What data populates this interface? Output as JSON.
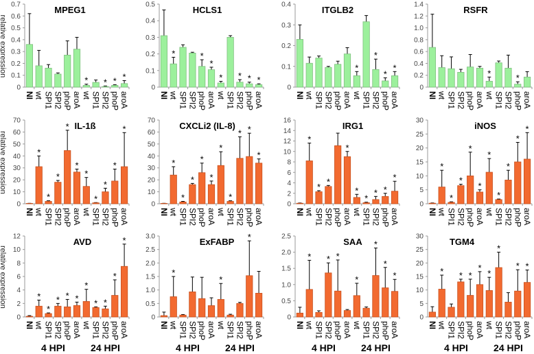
{
  "ylabel": "relative expression",
  "hpi_labels": [
    "4 HPI",
    "24 HPI"
  ],
  "colors": {
    "green": "#9cf09c",
    "green_stroke": "#7fbf7f",
    "orange": "#f26a30",
    "orange_stroke": "#c8501e",
    "error": "#000000"
  },
  "chart_data": [
    {
      "type": "bar",
      "title": "MPEG1",
      "color": "green",
      "categories": [
        "NI",
        "wt",
        "SPI1",
        "SPI2",
        "phoP",
        "aroA",
        "wt",
        "SPI1",
        "SPI2",
        "phoP",
        "aroA"
      ],
      "ticks": [
        "0",
        "0.1",
        "0.2",
        "0.3",
        "0.4",
        "0.5",
        "0.6",
        "0.7"
      ],
      "ylim": [
        0,
        0.7
      ],
      "values": [
        0.36,
        0.18,
        0.16,
        0.11,
        0.27,
        0.32,
        0.015,
        0.04,
        0.005,
        0.015,
        0.03
      ],
      "error_top": [
        0.62,
        0.31,
        0.19,
        0.12,
        0.39,
        0.42,
        0.025,
        0.06,
        0.01,
        0.02,
        0.055
      ],
      "significant": [
        6,
        8,
        9,
        10
      ]
    },
    {
      "type": "bar",
      "title": "HCLS1",
      "color": "green",
      "categories": [
        "NI",
        "wt",
        "SPI1",
        "SPI2",
        "phoP",
        "aroA",
        "wt",
        "SPI1",
        "SPI2",
        "phoP",
        "aroA"
      ],
      "ticks": [
        "0",
        "0.1",
        "0.2",
        "0.3",
        "0.4",
        "0.5"
      ],
      "ylim": [
        0,
        0.5
      ],
      "values": [
        0.31,
        0.14,
        0.24,
        0.205,
        0.125,
        0.105,
        0.025,
        0.3,
        0.03,
        0.02,
        0.015
      ],
      "error_top": [
        0.465,
        0.18,
        0.255,
        0.21,
        0.165,
        0.12,
        0.035,
        0.31,
        0.045,
        0.03,
        0.02
      ],
      "significant": [
        1,
        4,
        5,
        6,
        8,
        9,
        10
      ]
    },
    {
      "type": "bar",
      "title": "ITGLB2",
      "color": "green",
      "categories": [
        "NI",
        "wt",
        "SPI1",
        "SPI2",
        "phoP",
        "aroA",
        "wt",
        "SPI1",
        "SPI2",
        "phoP",
        "aroA"
      ],
      "ticks": [
        "0",
        "0.1",
        "0.2",
        "0.3",
        "0.4"
      ],
      "ylim": [
        0,
        0.4
      ],
      "values": [
        0.23,
        0.115,
        0.14,
        0.095,
        0.11,
        0.16,
        0.055,
        0.315,
        0.085,
        0.03,
        0.055
      ],
      "error_top": [
        0.3,
        0.145,
        0.15,
        0.1,
        0.125,
        0.19,
        0.075,
        0.345,
        0.135,
        0.045,
        0.075
      ],
      "significant": [
        6,
        8,
        9,
        10
      ]
    },
    {
      "type": "bar",
      "title": "RSFR",
      "color": "green",
      "categories": [
        "NI",
        "wt",
        "SPI1",
        "SPI2",
        "phoP",
        "aroA",
        "wt",
        "SPI1",
        "SPI2",
        "phoP",
        "aroA"
      ],
      "ticks": [
        "0",
        "0.2",
        "0.4",
        "0.6",
        "0.8",
        "1.0",
        "1.2",
        "1.4"
      ],
      "ylim": [
        0,
        1.4
      ],
      "values": [
        0.67,
        0.33,
        0.31,
        0.25,
        0.34,
        0.32,
        0.1,
        0.41,
        0.32,
        0.05,
        0.17
      ],
      "error_top": [
        1.23,
        0.53,
        0.51,
        0.3,
        0.55,
        0.35,
        0.17,
        0.44,
        0.54,
        0.09,
        0.26
      ],
      "significant": [
        6,
        9
      ]
    },
    {
      "type": "bar",
      "title": "IL-1ß",
      "color": "orange",
      "categories": [
        "NI",
        "wt",
        "SPI1",
        "SPI2",
        "phoP",
        "aroA",
        "wt",
        "SPI1",
        "SPI2",
        "phoP",
        "aroA"
      ],
      "ticks": [
        "0",
        "10",
        "20",
        "30",
        "40",
        "50",
        "60",
        "70"
      ],
      "ylim": [
        0,
        70
      ],
      "values": [
        0.3,
        31,
        2,
        18,
        44.5,
        26.5,
        14.5,
        0.8,
        10,
        19,
        31
      ],
      "error_top": [
        0.4,
        40,
        2.5,
        19.5,
        61.5,
        29,
        22,
        1,
        13,
        29,
        59.5
      ],
      "significant": [
        1,
        2,
        3,
        4,
        5,
        6,
        7,
        8,
        9,
        10
      ]
    },
    {
      "type": "bar",
      "title": "CXCLi2 (IL-8)",
      "color": "orange",
      "categories": [
        "NI",
        "wt",
        "SPI1",
        "SPI2",
        "phoP",
        "aroA",
        "wt",
        "SPI1",
        "SPI2",
        "phoP",
        "aroA"
      ],
      "ticks": [
        "0",
        "10",
        "20",
        "30",
        "40",
        "50",
        "60",
        "70"
      ],
      "ylim": [
        0,
        70
      ],
      "values": [
        0.3,
        24,
        1.5,
        16,
        26,
        16,
        32,
        2,
        38,
        39.5,
        34
      ],
      "error_top": [
        0.4,
        31,
        2,
        17,
        34,
        19,
        43.5,
        2.5,
        56,
        59,
        37.5
      ],
      "significant": [
        1,
        2,
        3,
        4,
        5,
        6,
        7,
        8,
        9,
        10
      ]
    },
    {
      "type": "bar",
      "title": "IRG1",
      "color": "orange",
      "categories": [
        "NI",
        "wt",
        "SPI1",
        "SPI2",
        "phoP",
        "aroA",
        "wt",
        "SPI1",
        "SPI2",
        "phoP",
        "aroA"
      ],
      "ticks": [
        "0",
        "2",
        "4",
        "6",
        "8",
        "10",
        "12",
        "14",
        "16"
      ],
      "ylim": [
        0,
        16
      ],
      "values": [
        0.1,
        8.2,
        2.3,
        3.3,
        11.1,
        9.0,
        1.2,
        0.2,
        0.8,
        1.4,
        2.4
      ],
      "error_top": [
        0.15,
        11.6,
        2.5,
        3.5,
        13.5,
        10,
        1.8,
        0.3,
        1.4,
        2.0,
        4.3
      ],
      "significant": [
        1,
        2,
        3,
        5,
        6,
        7,
        8,
        9,
        10
      ]
    },
    {
      "type": "bar",
      "title": "iNOS",
      "color": "orange",
      "categories": [
        "NI",
        "wt",
        "SPI1",
        "SPI2",
        "phoP",
        "aroA",
        "wt",
        "SPI1",
        "SPI2",
        "phoP",
        "aroA"
      ],
      "ticks": [
        "0",
        "5",
        "10",
        "15",
        "20",
        "25",
        "30"
      ],
      "ylim": [
        0,
        30
      ],
      "values": [
        0.2,
        6,
        0.5,
        6.5,
        10,
        4.2,
        11.3,
        1.5,
        8.5,
        15,
        16
      ],
      "error_top": [
        0.3,
        12,
        0.7,
        7,
        18.5,
        5,
        16.2,
        1.7,
        12,
        22,
        25.5
      ],
      "significant": [
        1,
        2,
        3,
        4,
        5,
        6,
        7,
        8,
        9,
        10
      ]
    },
    {
      "type": "bar",
      "title": "AVD",
      "color": "orange",
      "categories": [
        "NI",
        "wt",
        "SPI1",
        "SPI2",
        "phoP",
        "aroA",
        "wt",
        "SPI1",
        "SPI2",
        "phoP",
        "aroA"
      ],
      "ticks": [
        "0",
        "2",
        "4",
        "6",
        "8",
        "10",
        "12"
      ],
      "ylim": [
        0,
        12
      ],
      "values": [
        0.1,
        1.6,
        0.5,
        1.6,
        1.5,
        1.7,
        2.3,
        1.4,
        1.2,
        3.2,
        7.5
      ],
      "error_top": [
        0.2,
        2.5,
        0.6,
        2.0,
        2.6,
        2.2,
        4.1,
        1.5,
        1.6,
        5.5,
        10.8
      ],
      "significant": [
        1,
        2,
        3,
        4,
        5,
        6,
        7,
        8,
        9,
        10
      ]
    },
    {
      "type": "bar",
      "title": "ExFABP",
      "color": "orange",
      "categories": [
        "NI",
        "wt",
        "SPI1",
        "SPI2",
        "phoP",
        "aroA",
        "wt",
        "SPI1",
        "SPI2",
        "phoP",
        "aroA"
      ],
      "ticks": [
        "0",
        "0.5",
        "1.0",
        "1.5",
        "2.0",
        "2.5",
        "3.0"
      ],
      "ylim": [
        0,
        3.0
      ],
      "values": [
        0.05,
        0.75,
        0.07,
        0.93,
        0.68,
        0.42,
        0.65,
        0.07,
        0.5,
        1.53,
        0.88
      ],
      "error_top": [
        0.18,
        1.5,
        0.09,
        1.48,
        1.47,
        0.71,
        1.24,
        0.1,
        0.54,
        2.82,
        1.69
      ],
      "significant": [
        1,
        6,
        9
      ]
    },
    {
      "type": "bar",
      "title": "SAA",
      "color": "orange",
      "categories": [
        "NI",
        "wt",
        "SPI1",
        "SPI2",
        "phoP",
        "aroA",
        "wt",
        "SPI1",
        "SPI2",
        "phoP",
        "aroA"
      ],
      "ticks": [
        "0",
        "0.5",
        "1.0",
        "1.5",
        "2.0",
        "2.5"
      ],
      "ylim": [
        0,
        2.5
      ],
      "values": [
        0.12,
        0.85,
        0.14,
        1.36,
        0.8,
        0.2,
        0.66,
        0.27,
        1.28,
        0.9,
        0.79
      ],
      "error_top": [
        0.3,
        1.75,
        0.19,
        1.67,
        1.76,
        0.23,
        1.04,
        0.31,
        2.13,
        1.53,
        1.16
      ],
      "significant": [
        1,
        3,
        4,
        6,
        8,
        9,
        10
      ]
    },
    {
      "type": "bar",
      "title": "TGM4",
      "color": "orange",
      "categories": [
        "NI",
        "wt",
        "SPI1",
        "SPI2",
        "phoP",
        "aroA",
        "wt",
        "SPI1",
        "SPI2",
        "phoP",
        "aroA"
      ],
      "ticks": [
        "0",
        "5",
        "10",
        "15",
        "20",
        "25",
        "30"
      ],
      "ylim": [
        0,
        30
      ],
      "values": [
        1.8,
        10.3,
        3.6,
        13,
        8,
        12,
        9.8,
        18.3,
        5.5,
        9.6,
        12.8
      ],
      "error_top": [
        3.8,
        15.5,
        4.8,
        14,
        14,
        16.8,
        14.7,
        24,
        9,
        17.5,
        17.4
      ],
      "significant": [
        1,
        3,
        4,
        5,
        6,
        7,
        9,
        10
      ]
    }
  ]
}
